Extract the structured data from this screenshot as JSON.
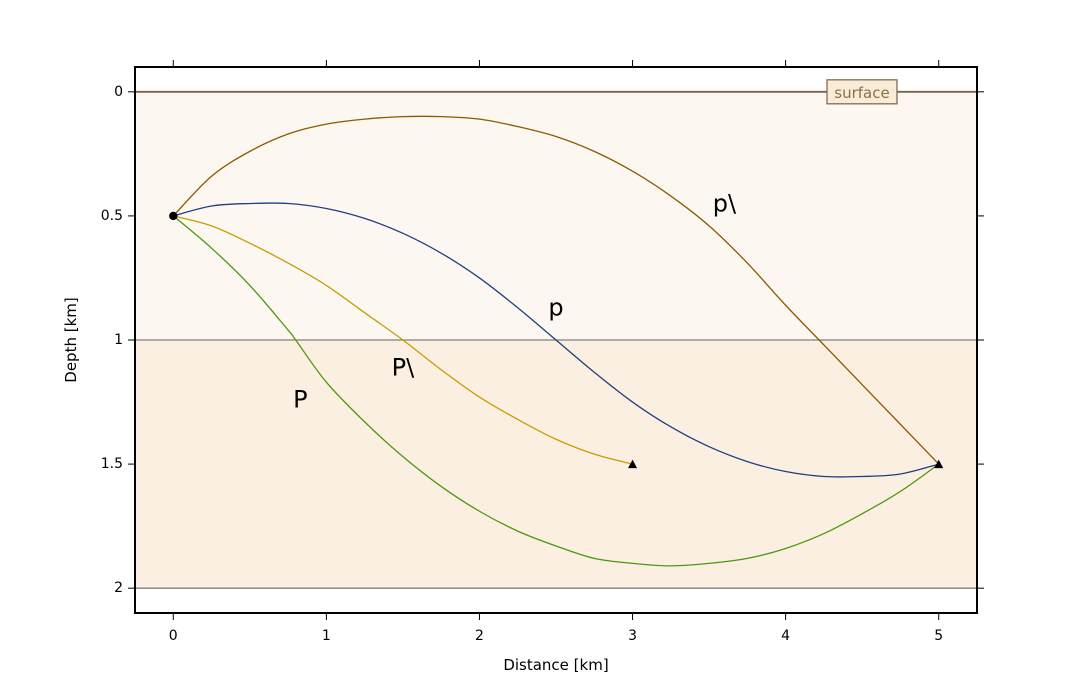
{
  "chart_data": {
    "type": "line",
    "xlabel": "Distance [km]",
    "ylabel": "Depth [km]",
    "xlim": [
      -0.25,
      5.25
    ],
    "ylim": [
      2.1,
      -0.1
    ],
    "xticks": [
      0,
      1,
      2,
      3,
      4,
      5
    ],
    "xtick_labels": [
      "0",
      "1",
      "2",
      "3",
      "4",
      "5"
    ],
    "yticks": [
      0,
      0.5,
      1,
      1.5,
      2
    ],
    "ytick_labels": [
      "0",
      "0.5",
      "1",
      "1.5",
      "2"
    ],
    "layers": [
      {
        "top": 0,
        "bottom": 1,
        "color": "#fcf7f1"
      },
      {
        "top": 1,
        "bottom": 2,
        "color": "#faefe1"
      }
    ],
    "interfaces": [
      {
        "depth": 0,
        "color": "#7a6248",
        "label": "surface"
      },
      {
        "depth": 1,
        "color": "#808080"
      },
      {
        "depth": 2,
        "color": "#808080"
      }
    ],
    "source": {
      "x": 0,
      "y": 0.5
    },
    "receivers": [
      {
        "x": 3,
        "y": 1.5
      },
      {
        "x": 5,
        "y": 1.5
      }
    ],
    "series": [
      {
        "name": "p\\",
        "color": "#8a5a00",
        "x": [
          0,
          0.25,
          0.5,
          0.75,
          1.0,
          1.25,
          1.5,
          1.75,
          2.0,
          2.25,
          2.5,
          2.75,
          3.0,
          3.25,
          3.5,
          3.75,
          4.0,
          4.25,
          4.5,
          4.75,
          5.0
        ],
        "y": [
          0.5,
          0.34,
          0.24,
          0.17,
          0.13,
          0.11,
          0.1,
          0.1,
          0.11,
          0.14,
          0.18,
          0.24,
          0.32,
          0.42,
          0.54,
          0.69,
          0.86,
          1.02,
          1.18,
          1.34,
          1.5
        ],
        "label_at": [
          3.6,
          0.45
        ]
      },
      {
        "name": "p",
        "color": "#1f3f80",
        "x": [
          0,
          0.25,
          0.5,
          0.75,
          1.0,
          1.25,
          1.5,
          1.75,
          2.0,
          2.25,
          2.5,
          2.75,
          3.0,
          3.25,
          3.5,
          3.75,
          4.0,
          4.25,
          4.5,
          4.75,
          5.0
        ],
        "y": [
          0.5,
          0.46,
          0.45,
          0.45,
          0.47,
          0.51,
          0.57,
          0.65,
          0.75,
          0.87,
          1.0,
          1.13,
          1.25,
          1.35,
          1.43,
          1.49,
          1.53,
          1.55,
          1.55,
          1.54,
          1.5
        ],
        "label_at": [
          2.5,
          0.87
        ]
      },
      {
        "name": "P\\",
        "color": "#c89e00",
        "x": [
          0,
          0.25,
          0.5,
          0.75,
          1.0,
          1.25,
          1.5,
          1.75,
          2.0,
          2.25,
          2.5,
          2.75,
          3.0
        ],
        "y": [
          0.5,
          0.54,
          0.61,
          0.69,
          0.78,
          0.89,
          1.0,
          1.12,
          1.23,
          1.32,
          1.4,
          1.46,
          1.5
        ],
        "label_at": [
          1.5,
          1.11
        ]
      },
      {
        "name": "P",
        "color": "#4a9a10",
        "x": [
          0,
          0.25,
          0.5,
          0.75,
          0.8,
          1.0,
          1.25,
          1.5,
          1.75,
          2.0,
          2.25,
          2.5,
          2.75,
          3.0,
          3.25,
          3.5,
          3.75,
          4.0,
          4.25,
          4.5,
          4.75,
          5.0
        ],
        "y": [
          0.5,
          0.63,
          0.78,
          0.96,
          1.0,
          1.17,
          1.33,
          1.47,
          1.59,
          1.69,
          1.77,
          1.83,
          1.88,
          1.9,
          1.91,
          1.9,
          1.88,
          1.84,
          1.78,
          1.7,
          1.61,
          1.5
        ],
        "label_at": [
          0.83,
          1.24
        ]
      }
    ]
  }
}
